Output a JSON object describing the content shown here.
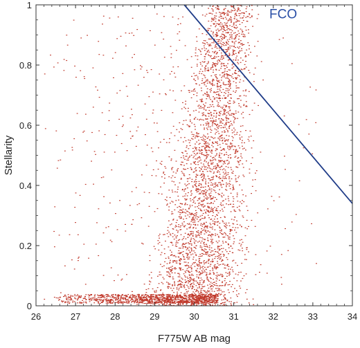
{
  "chart_data": {
    "type": "scatter",
    "title": "",
    "xlabel": "F775W AB mag",
    "ylabel": "Stellarity",
    "xlim": [
      26,
      34
    ],
    "ylim": [
      0,
      1
    ],
    "x_ticks": [
      "26",
      "27",
      "28",
      "29",
      "30",
      "31",
      "32",
      "33",
      "34"
    ],
    "y_ticks": [
      "0",
      "0.2",
      "0.4",
      "0.6",
      "0.8",
      "1"
    ],
    "grid": false,
    "colors": {
      "points": "#c0392b",
      "line": "#1f3c88",
      "annotation": "#2a4fa6",
      "axis": "#333333"
    },
    "points_description": "dense band of sources from ~29 to ~31.8 mag across all stellarity values, sparser scatter at brighter mags, and a heavy clump near stellarity 0.01-0.03 from ~26 to ~30.5 mag",
    "lines": [
      {
        "x": [
          29.75,
          34.0
        ],
        "y": [
          1.0,
          0.34
        ]
      }
    ],
    "annotations": [
      {
        "text": "FCO",
        "x": 31.9,
        "y": 0.955
      }
    ]
  }
}
